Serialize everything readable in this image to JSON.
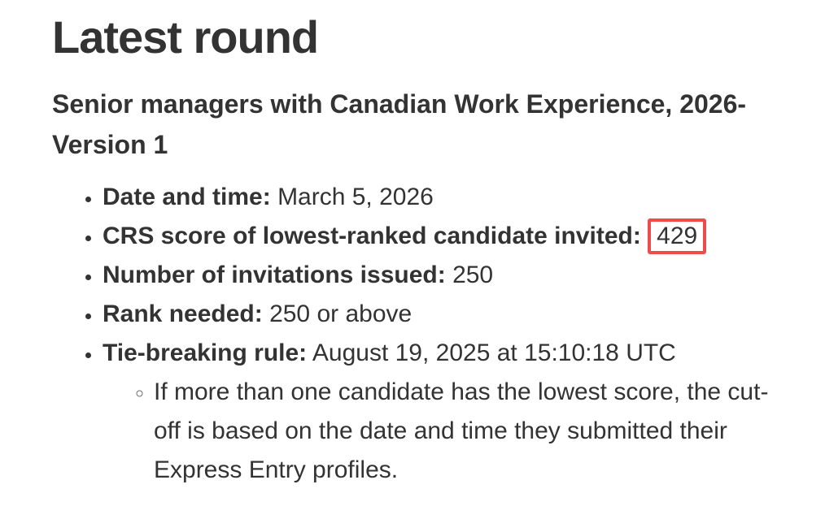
{
  "page": {
    "heading": "Latest round",
    "subheading": "Senior managers with Canadian Work Experience, 2026-Version 1",
    "bullets": [
      {
        "label": "Date and time:",
        "value": "March 5, 2026"
      },
      {
        "label": "CRS score of lowest-ranked candidate invited:",
        "value": "429",
        "highlighted": true
      },
      {
        "label": "Number of invitations issued:",
        "value": "250"
      },
      {
        "label": "Rank needed:",
        "value": "250 or above"
      },
      {
        "label": "Tie-breaking rule:",
        "value": "August 19, 2025 at 15:10:18 UTC"
      }
    ],
    "sub_bullet": "If more than one candidate has the lowest score, the cut-off is based on the date and time they submitted their Express Entry profiles.",
    "colors": {
      "text": "#333333",
      "highlight_box_border": "#ec4c4c",
      "background": "#ffffff"
    }
  }
}
